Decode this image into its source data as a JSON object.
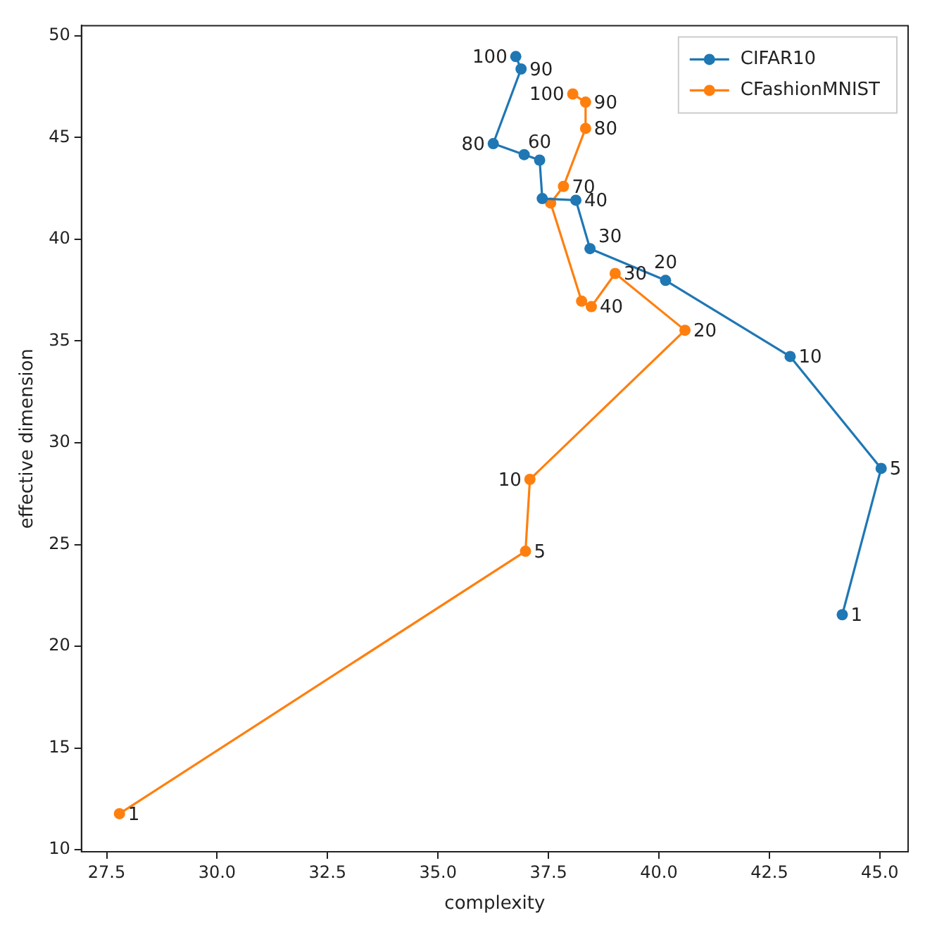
{
  "chart_data": {
    "type": "line",
    "xlabel": "complexity",
    "ylabel": "effective dimension",
    "marker": "circle",
    "line_style": "solid",
    "grid": false,
    "legend": "top right",
    "xlim": [
      26.93,
      45.64
    ],
    "ylim": [
      9.9,
      50.5
    ],
    "xticks": [
      {
        "value": 27.5,
        "label": "27.5"
      },
      {
        "value": 30,
        "label": "30.0"
      },
      {
        "value": 32.5,
        "label": "32.5"
      },
      {
        "value": 35,
        "label": "35.0"
      },
      {
        "value": 37.5,
        "label": "37.5"
      },
      {
        "value": 40,
        "label": "40.0"
      },
      {
        "value": 42.5,
        "label": "42.5"
      },
      {
        "value": 45,
        "label": "45.0"
      }
    ],
    "yticks": [
      10,
      15,
      20,
      25,
      30,
      35,
      40,
      45,
      50
    ],
    "series": [
      {
        "name": "CIFAR10",
        "color": "#1f77b4",
        "x": [
          44.15,
          45.03,
          42.97,
          40.15,
          38.44,
          38.12,
          37.36,
          37.3,
          36.95,
          36.25,
          36.88,
          36.76
        ],
        "values": [
          21.55,
          28.74,
          34.24,
          37.98,
          39.54,
          41.92,
          42.0,
          43.89,
          44.16,
          44.7,
          48.37,
          48.98
        ]
      },
      {
        "name": "CFashionMNIST",
        "color": "#ff7f0e",
        "x": [
          27.79,
          36.98,
          37.08,
          40.59,
          39.01,
          38.47,
          38.25,
          37.55,
          37.84,
          38.34,
          38.34,
          38.05
        ],
        "values": [
          11.77,
          24.67,
          28.2,
          35.53,
          38.32,
          36.69,
          36.96,
          41.78,
          42.6,
          45.45,
          46.74,
          47.14
        ]
      }
    ],
    "annotations": [
      {
        "text": "1",
        "x": 44.15,
        "y": 21.55
      },
      {
        "text": "5",
        "x": 45.03,
        "y": 28.74
      },
      {
        "text": "10",
        "x": 42.97,
        "y": 34.24
      },
      {
        "text": "20",
        "x": 40.15,
        "y": 37.98
      },
      {
        "text": "30",
        "x": 38.44,
        "y": 39.54
      },
      {
        "text": "40",
        "x": 38.12,
        "y": 41.92
      },
      {
        "text": "60",
        "x": 37.3,
        "y": 43.89
      },
      {
        "text": "80",
        "x": 36.25,
        "y": 44.7
      },
      {
        "text": "90",
        "x": 36.88,
        "y": 48.37
      },
      {
        "text": "100",
        "x": 36.76,
        "y": 48.98
      },
      {
        "text": "1",
        "x": 27.79,
        "y": 11.77
      },
      {
        "text": "5",
        "x": 36.98,
        "y": 24.67
      },
      {
        "text": "10",
        "x": 37.08,
        "y": 28.2
      },
      {
        "text": "20",
        "x": 40.59,
        "y": 35.53
      },
      {
        "text": "30",
        "x": 39.01,
        "y": 38.32
      },
      {
        "text": "40",
        "x": 38.47,
        "y": 36.69
      },
      {
        "text": "70",
        "x": 37.84,
        "y": 42.6
      },
      {
        "text": "80",
        "x": 38.34,
        "y": 45.45
      },
      {
        "text": "90",
        "x": 38.34,
        "y": 46.74
      },
      {
        "text": "100",
        "x": 38.05,
        "y": 47.14
      }
    ]
  }
}
